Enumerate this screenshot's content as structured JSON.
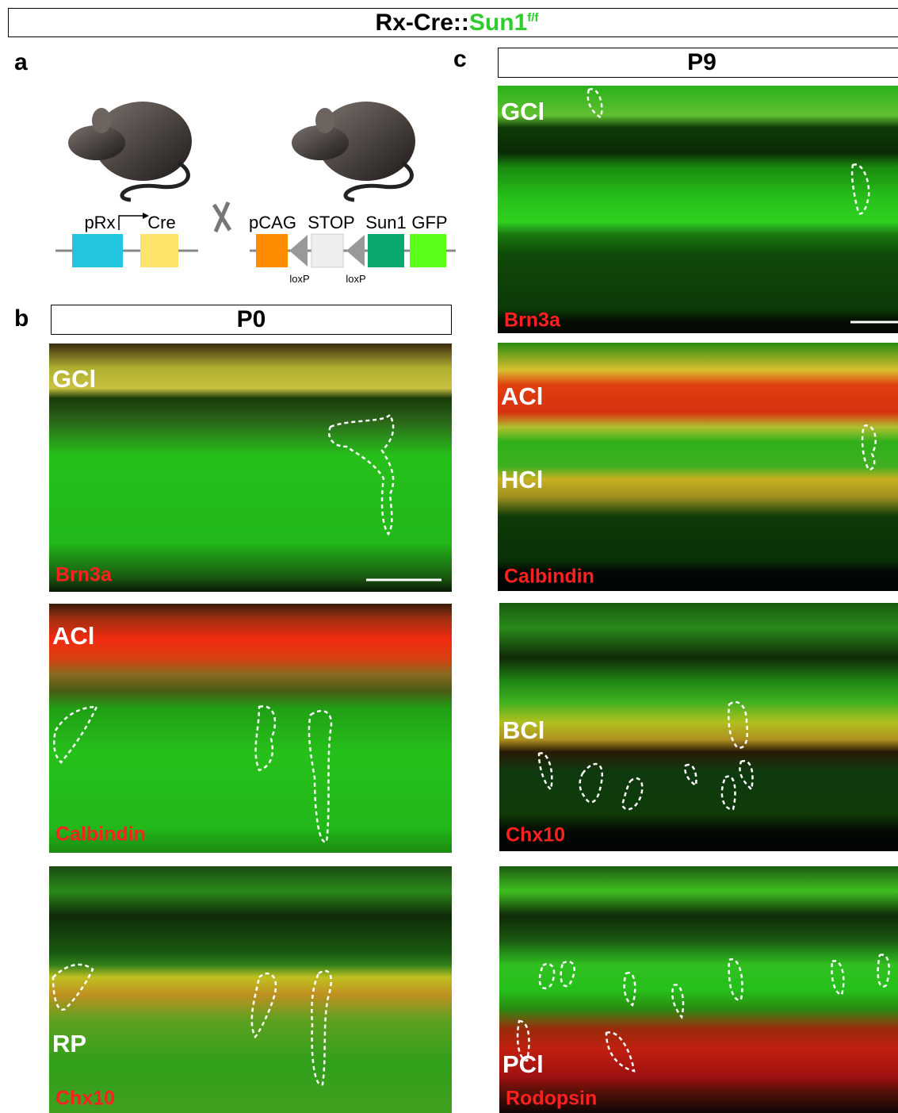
{
  "header": {
    "title_prefix": "Rx-Cre::",
    "title_gene": "Sun1",
    "title_sup": "f/f"
  },
  "panels": {
    "a": {
      "label": "a",
      "construct1": {
        "promoter": "pRx",
        "gene": "Cre"
      },
      "construct2": {
        "promoter": "pCAG",
        "stop": "STOP",
        "gene": "Sun1",
        "reporter": "GFP",
        "lox": [
          "loxP",
          "loxP"
        ]
      }
    },
    "b": {
      "label": "b",
      "stage": "P0",
      "images": [
        {
          "layers": [
            "GCl"
          ],
          "marker": "Brn3a"
        },
        {
          "layers": [
            "ACl"
          ],
          "marker": "Calbindin"
        },
        {
          "layers": [
            "RP"
          ],
          "marker": "Chx10"
        }
      ]
    },
    "c": {
      "label": "c",
      "stage": "P9",
      "images": [
        {
          "layers": [
            "GCl"
          ],
          "marker": "Brn3a"
        },
        {
          "layers": [
            "ACl",
            "HCl"
          ],
          "marker": "Calbindin"
        },
        {
          "layers": [
            "BCl"
          ],
          "marker": "Chx10"
        },
        {
          "layers": [
            "PCl"
          ],
          "marker": "Rodopsin"
        }
      ]
    }
  }
}
